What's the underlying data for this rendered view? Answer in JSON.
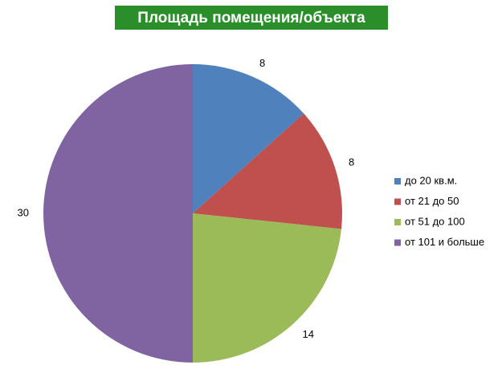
{
  "chart_data": {
    "type": "pie",
    "title": "Площадь помещения/объекта",
    "categories": [
      "до 20 кв.м.",
      "от 21 до 50",
      "от 51 до 100",
      "от 101 и больше"
    ],
    "values": [
      8,
      8,
      14,
      30
    ],
    "colors": [
      "#4f81bd",
      "#c0504d",
      "#9bbb59",
      "#8064a2"
    ],
    "title_background": "#2a8f2a",
    "legend": "right"
  }
}
